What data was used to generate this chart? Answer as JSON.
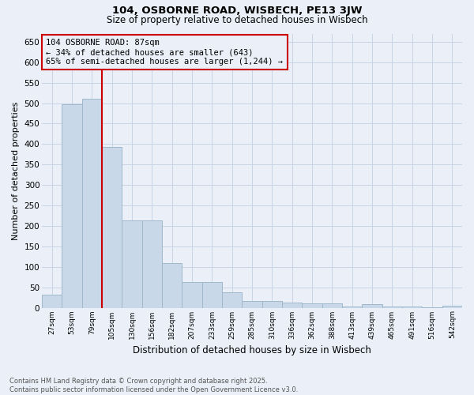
{
  "title1": "104, OSBORNE ROAD, WISBECH, PE13 3JW",
  "title2": "Size of property relative to detached houses in Wisbech",
  "xlabel": "Distribution of detached houses by size in Wisbech",
  "ylabel": "Number of detached properties",
  "footer1": "Contains HM Land Registry data © Crown copyright and database right 2025.",
  "footer2": "Contains public sector information licensed under the Open Government Licence v3.0.",
  "annotation_title": "104 OSBORNE ROAD: 87sqm",
  "annotation_line1": "← 34% of detached houses are smaller (643)",
  "annotation_line2": "65% of semi-detached houses are larger (1,244) →",
  "bar_color": "#c8d8e8",
  "bar_edge_color": "#a0b8cc",
  "vline_color": "#cc0000",
  "annotation_box_edge_color": "#cc0000",
  "grid_color": "#c8d4e4",
  "bg_color": "#eaeff8",
  "categories": [
    "27sqm",
    "53sqm",
    "79sqm",
    "105sqm",
    "130sqm",
    "156sqm",
    "182sqm",
    "207sqm",
    "233sqm",
    "259sqm",
    "285sqm",
    "310sqm",
    "336sqm",
    "362sqm",
    "388sqm",
    "413sqm",
    "439sqm",
    "465sqm",
    "491sqm",
    "516sqm",
    "542sqm"
  ],
  "values": [
    32,
    498,
    510,
    393,
    213,
    213,
    110,
    62,
    62,
    38,
    17,
    16,
    12,
    10,
    10,
    2,
    8,
    2,
    2,
    1,
    5
  ],
  "ylim": [
    0,
    670
  ],
  "yticks": [
    0,
    50,
    100,
    150,
    200,
    250,
    300,
    350,
    400,
    450,
    500,
    550,
    600,
    650
  ],
  "vline_index": 2,
  "bar_width": 1.0
}
